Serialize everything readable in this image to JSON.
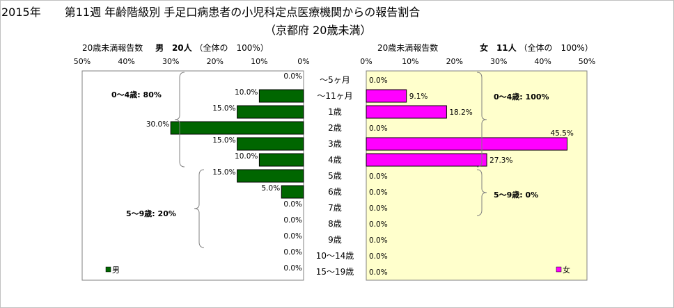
{
  "header": {
    "year": "2015年",
    "title": "第11週 年齢階級別 手足口病患者の小児科定点医療機関からの報告割合",
    "subtitle": "（京都府 20歳未満）"
  },
  "left_header": {
    "caption": "20歳未満報告数",
    "sex": "男",
    "count": "20人",
    "note": "（全体の　100%）"
  },
  "right_header": {
    "caption": "20歳未満報告数",
    "sex": "女",
    "count": "11人",
    "note": "（全体の　100%）"
  },
  "colors": {
    "male": "#006600",
    "female": "#ff00ff",
    "plot_bg": "#ffffcc"
  },
  "chart_data": [
    {
      "type": "bar",
      "orientation": "horizontal",
      "direction": "right-to-left",
      "categories": [
        "～5ヶ月",
        "～11ヶ月",
        "1歳",
        "2歳",
        "3歳",
        "4歳",
        "5歳",
        "6歳",
        "7歳",
        "8歳",
        "9歳",
        "10～14歳",
        "15～19歳"
      ],
      "series": [
        {
          "name": "男",
          "values": [
            0.0,
            10.0,
            15.0,
            30.0,
            15.0,
            10.0,
            15.0,
            5.0,
            0.0,
            0.0,
            0.0,
            0.0,
            0.0
          ]
        }
      ],
      "data_labels": [
        "0.0%",
        "10.0%",
        "15.0%",
        "30.0%",
        "15.0%",
        "10.0%",
        "15.0%",
        "5.0%",
        "0.0%",
        "0.0%",
        "0.0%",
        "0.0%",
        "0.0%"
      ],
      "xlim": [
        0,
        50
      ],
      "xticks": [
        "50%",
        "40%",
        "30%",
        "20%",
        "10%",
        "0%"
      ],
      "legend": "bottom-left",
      "annotations": [
        "0～4歳: 80%",
        "5～9歳: 20%"
      ]
    },
    {
      "type": "bar",
      "orientation": "horizontal",
      "direction": "left-to-right",
      "categories": [
        "～5ヶ月",
        "～11ヶ月",
        "1歳",
        "2歳",
        "3歳",
        "4歳",
        "5歳",
        "6歳",
        "7歳",
        "8歳",
        "9歳",
        "10～14歳",
        "15～19歳"
      ],
      "series": [
        {
          "name": "女",
          "values": [
            0.0,
            9.1,
            18.2,
            0.0,
            45.5,
            27.3,
            0.0,
            0.0,
            0.0,
            0.0,
            0.0,
            0.0,
            0.0
          ]
        }
      ],
      "data_labels": [
        "0.0%",
        "9.1%",
        "18.2%",
        "0.0%",
        "45.5%",
        "27.3%",
        "0.0%",
        "0.0%",
        "0.0%",
        "0.0%",
        "0.0%",
        "0.0%",
        "0.0%"
      ],
      "xlim": [
        0,
        50
      ],
      "xticks": [
        "0%",
        "10%",
        "20%",
        "30%",
        "40%",
        "50%"
      ],
      "legend": "bottom-right",
      "annotations": [
        "0～4歳: 100%",
        "5～9歳: 0%"
      ]
    }
  ]
}
